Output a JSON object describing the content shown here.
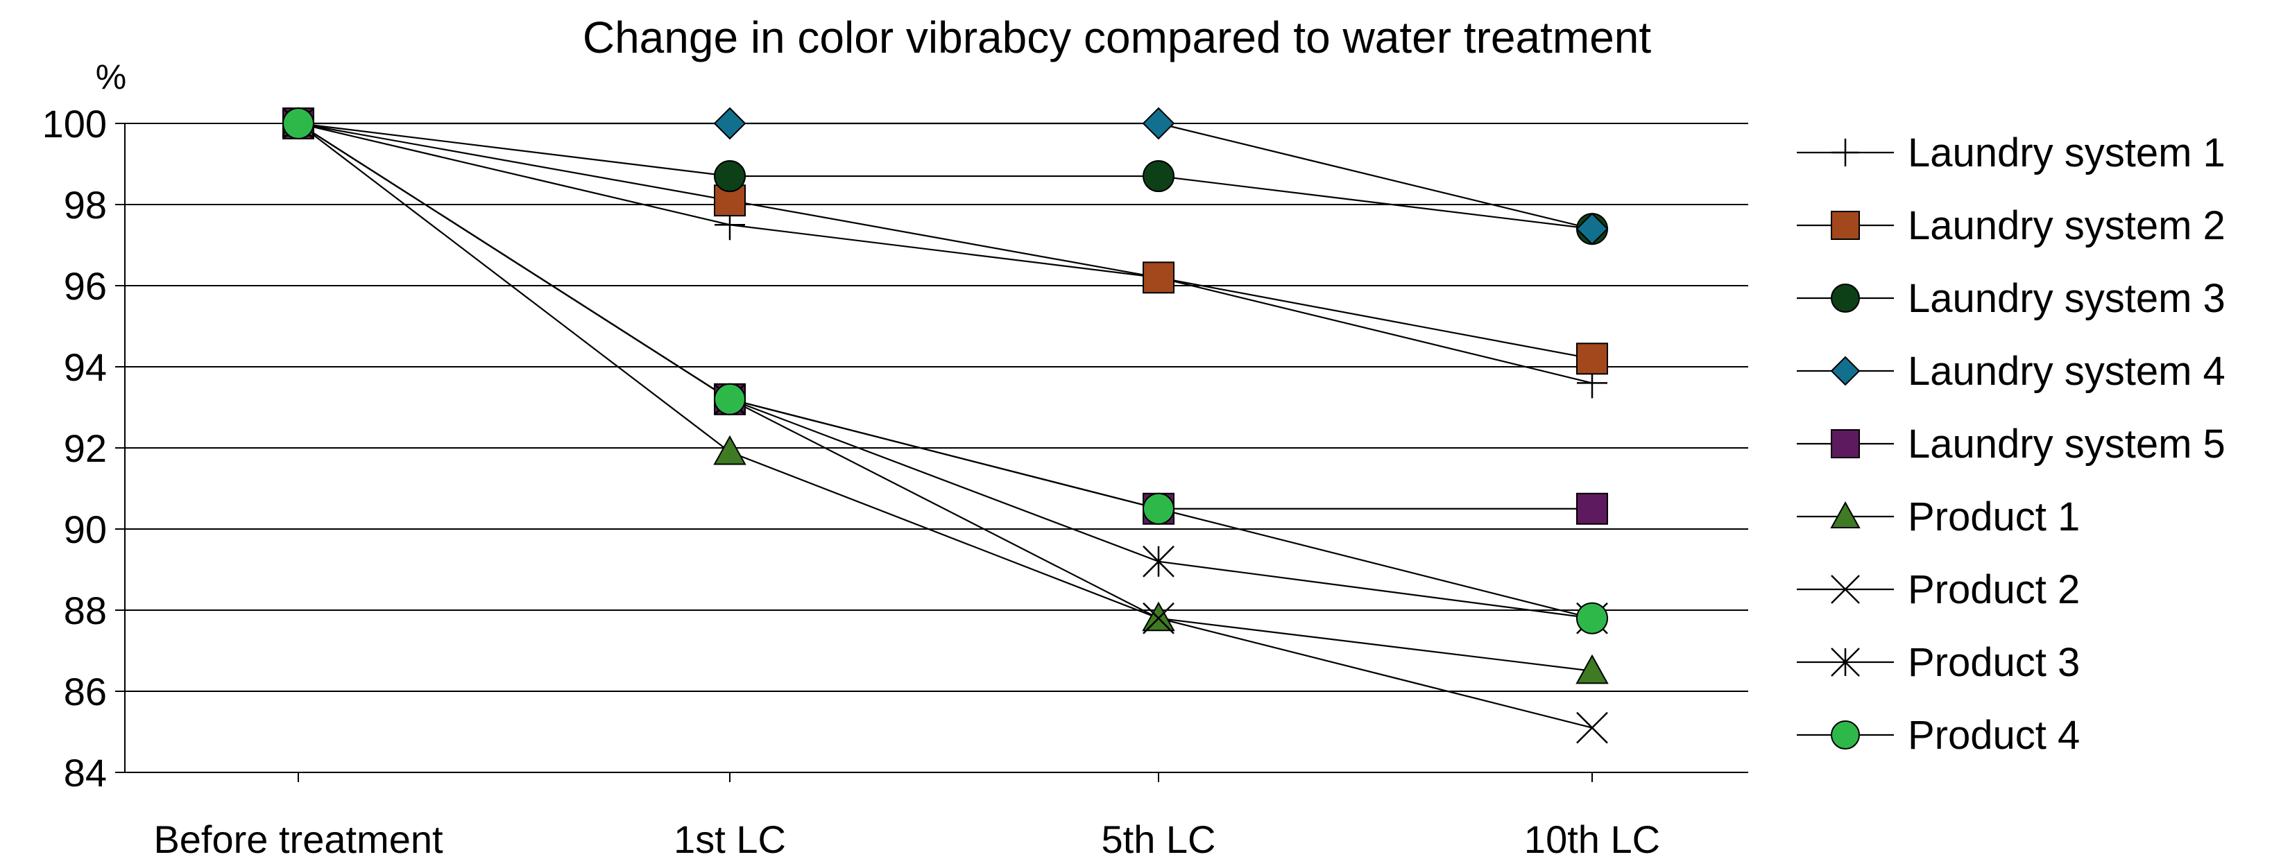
{
  "chart_data": {
    "type": "line",
    "title": "Change in color vibrabcy compared to water treatment",
    "ylabel": "%",
    "xlabel": "",
    "categories": [
      "Before treatment",
      "1st LC",
      "5th LC",
      "10th LC"
    ],
    "ylim": [
      84,
      100
    ],
    "yticks": [
      84,
      86,
      88,
      90,
      92,
      94,
      96,
      98,
      100
    ],
    "grid": "horizontal",
    "legend": "right",
    "series": [
      {
        "name": "Laundry system 1",
        "marker": "plus",
        "color": "#000000",
        "values": [
          100,
          97.5,
          96.2,
          93.6
        ]
      },
      {
        "name": "Laundry system 2",
        "marker": "square",
        "color": "#a2481c",
        "values": [
          100,
          98.1,
          96.2,
          94.2
        ]
      },
      {
        "name": "Laundry system 3",
        "marker": "circle",
        "color": "#0d4016",
        "values": [
          100,
          98.7,
          98.7,
          97.4
        ]
      },
      {
        "name": "Laundry system 4",
        "marker": "diamond",
        "color": "#12708f",
        "values": [
          100,
          100,
          100,
          97.4
        ]
      },
      {
        "name": "Laundry system 5",
        "marker": "square",
        "color": "#5e1a5e",
        "values": [
          100,
          93.2,
          90.5,
          90.5
        ]
      },
      {
        "name": "Product 1",
        "marker": "triangle",
        "color": "#3f7a25",
        "values": [
          100,
          91.9,
          87.8,
          86.5
        ]
      },
      {
        "name": "Product 2",
        "marker": "x",
        "color": "#000000",
        "values": [
          100,
          93.2,
          87.8,
          85.1
        ]
      },
      {
        "name": "Product 3",
        "marker": "asterisk",
        "color": "#000000",
        "values": [
          100,
          93.2,
          89.2,
          87.8
        ]
      },
      {
        "name": "Product 4",
        "marker": "circle",
        "color": "#2fb84a",
        "values": [
          100,
          93.2,
          90.5,
          87.8
        ]
      }
    ]
  }
}
